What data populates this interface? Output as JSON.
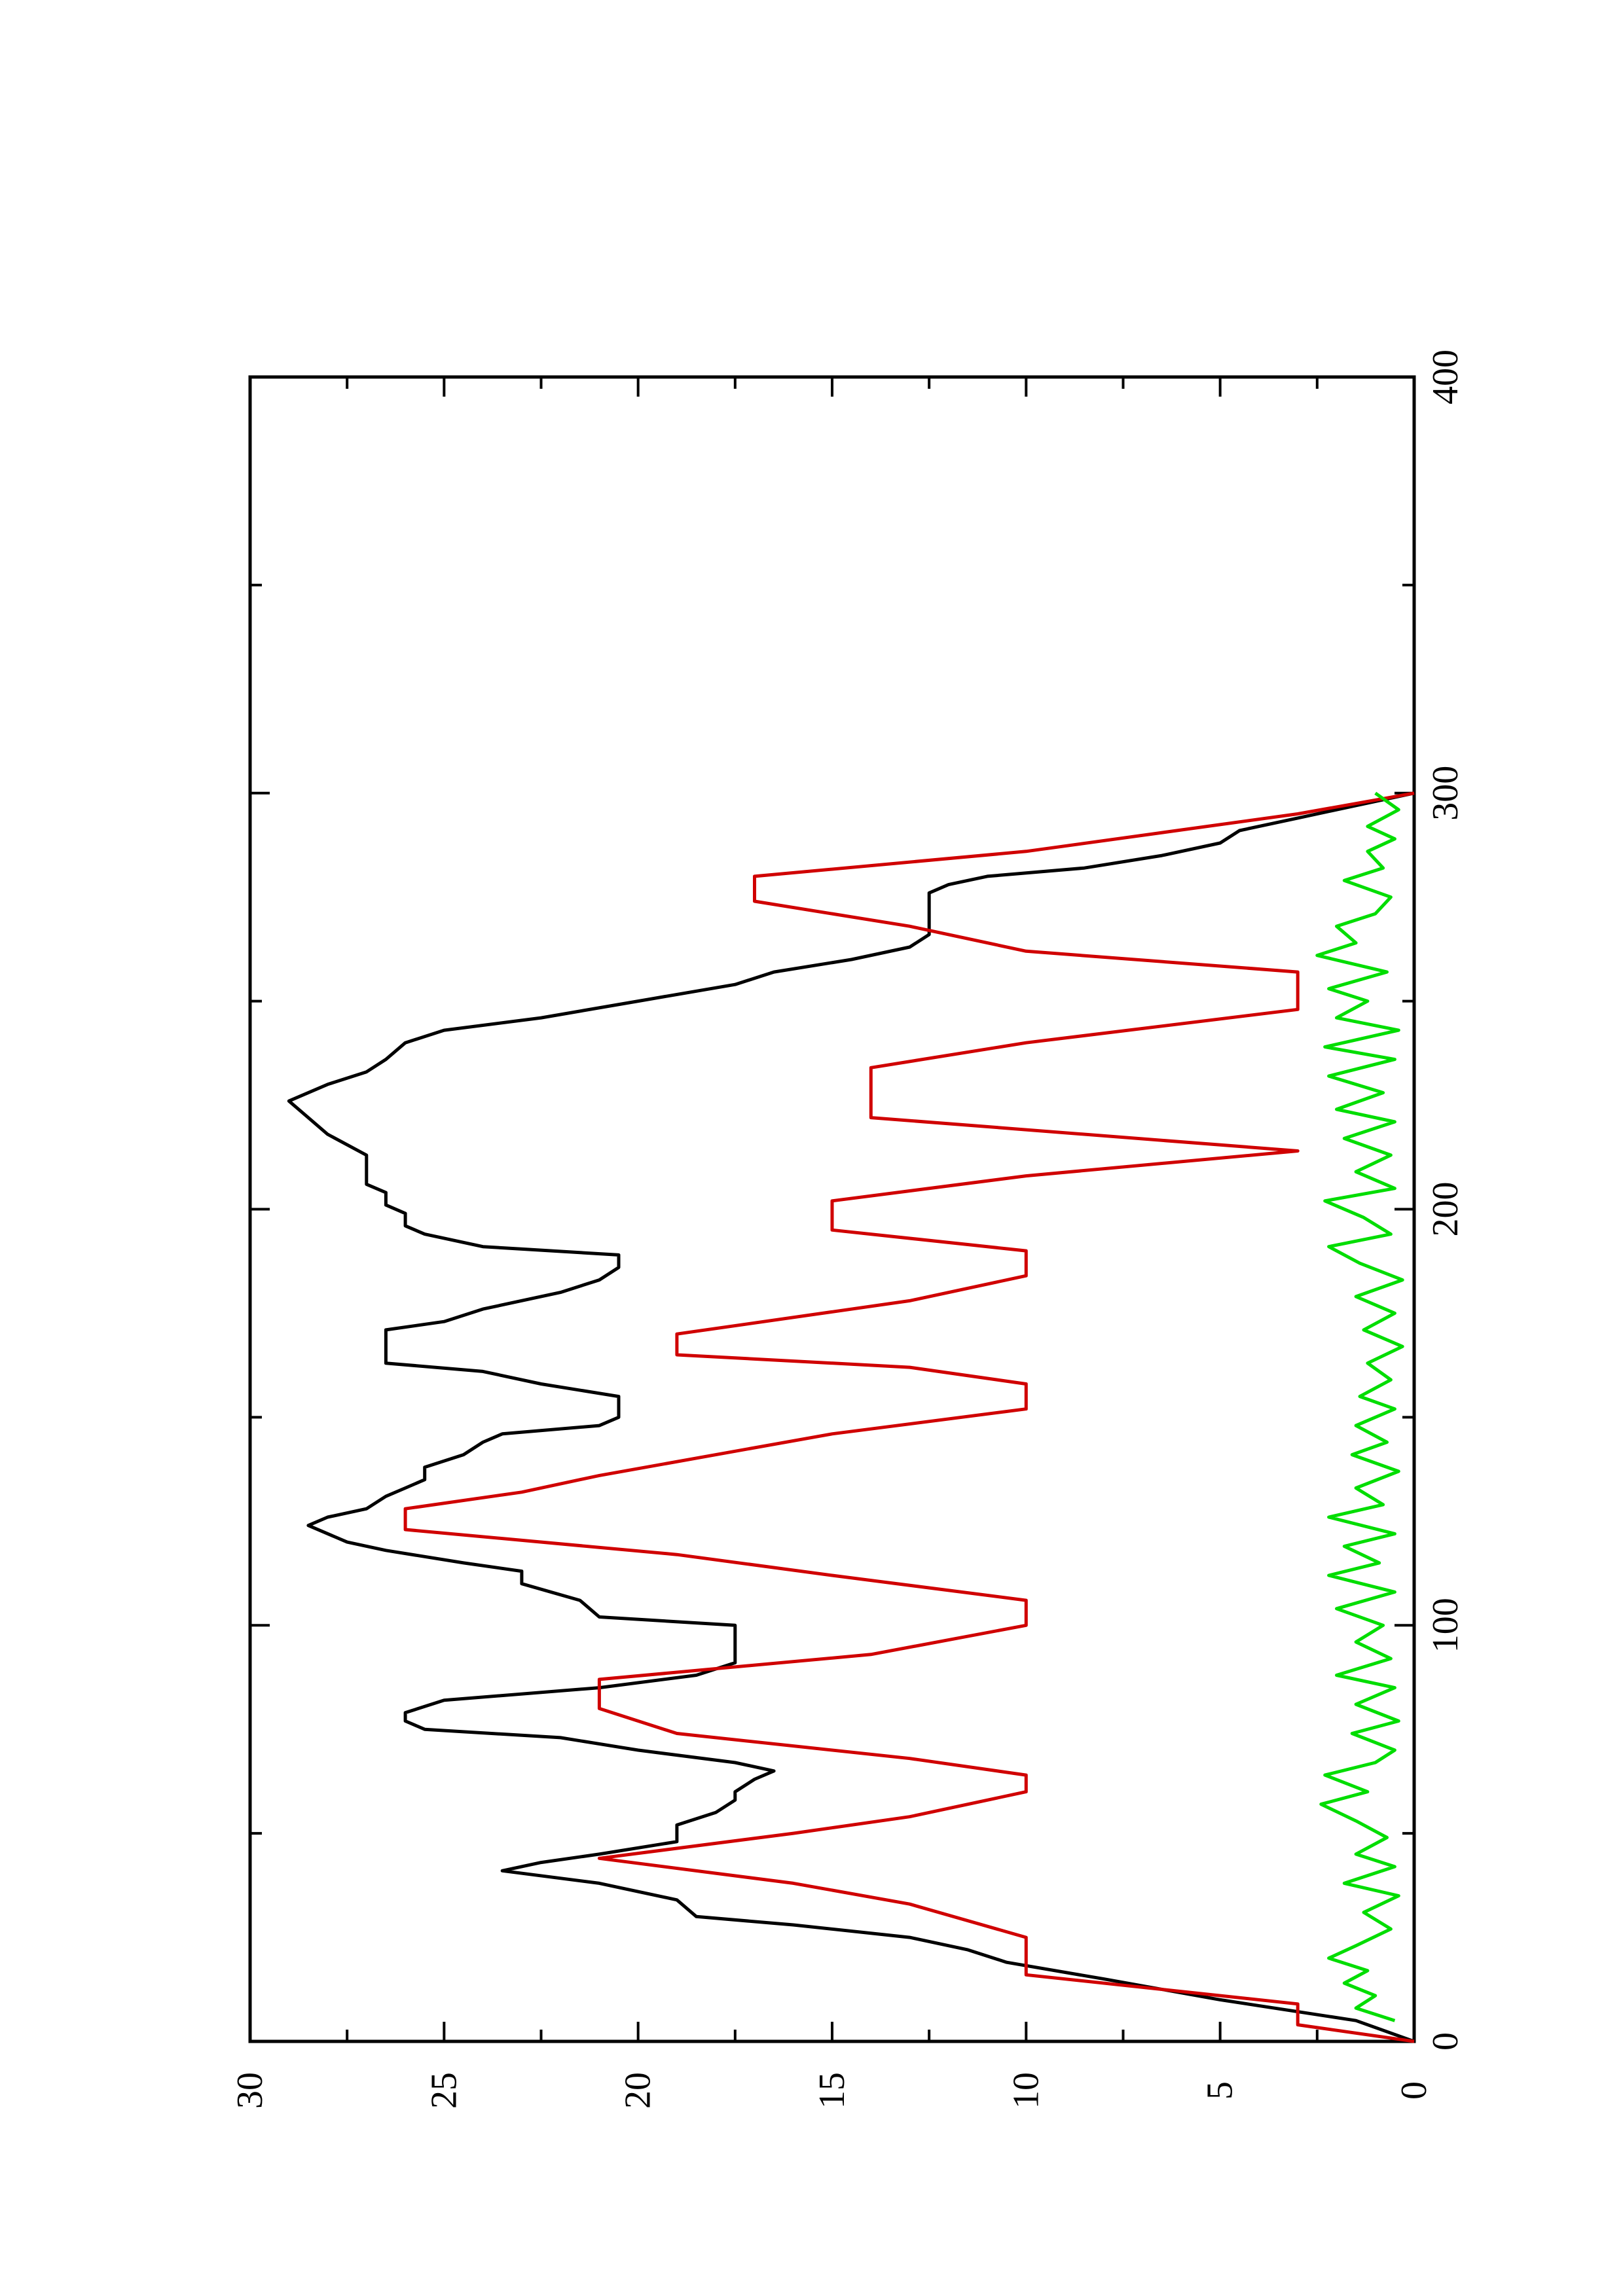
{
  "chart_data": {
    "type": "line",
    "orientation": "rotated-90-ccw",
    "title": "",
    "xlabel": "",
    "ylabel": "",
    "xlim": [
      0,
      400
    ],
    "ylim": [
      0,
      30
    ],
    "x_ticks": [
      0,
      100,
      200,
      300,
      400
    ],
    "x_tick_labels": [
      "0",
      "100",
      "200",
      "300",
      "400"
    ],
    "y_ticks": [
      0,
      5,
      10,
      15,
      20,
      25,
      30
    ],
    "y_tick_labels": [
      "0",
      "5",
      "10",
      "15",
      "20",
      "25",
      "30"
    ],
    "grid": false,
    "legend": "none",
    "series": [
      {
        "color": "#000000",
        "x": [
          0,
          5,
          10,
          15,
          19,
          22,
          25,
          28,
          30,
          34,
          38,
          41,
          43,
          45,
          48,
          52,
          55,
          58,
          60,
          63,
          65,
          67,
          70,
          73,
          75,
          77,
          79,
          82,
          85,
          88,
          91,
          93,
          96,
          100,
          102,
          106,
          110,
          113,
          115,
          118,
          120,
          124,
          126,
          128,
          131,
          133,
          135,
          138,
          141,
          144,
          146,
          148,
          150,
          151,
          152,
          155,
          158,
          161,
          163,
          165,
          168,
          171,
          173,
          176,
          180,
          183,
          186,
          189,
          191,
          194,
          196,
          199,
          201,
          204,
          206,
          210,
          213,
          218,
          222,
          226,
          230,
          233,
          236,
          240,
          243,
          246,
          250,
          254,
          257,
          260,
          263,
          266,
          268,
          270,
          272,
          274,
          276,
          278,
          280,
          282,
          285,
          288,
          291,
          294,
          297,
          300
        ],
        "y": [
          0,
          1.5,
          5,
          8,
          10.5,
          11.5,
          13,
          16,
          18.5,
          19,
          21,
          23.5,
          22.5,
          21,
          19,
          19,
          18,
          17.5,
          17.5,
          17,
          16.5,
          17.5,
          20,
          22,
          25.5,
          26,
          26,
          25,
          21,
          18.5,
          17.5,
          17.5,
          17.5,
          17.5,
          21,
          21.5,
          23,
          23,
          24.5,
          26.5,
          27.5,
          28.5,
          28,
          27,
          26.5,
          26,
          25.5,
          25.5,
          24.5,
          24,
          23.5,
          21,
          20.5,
          20.5,
          20.5,
          20.5,
          22.5,
          24,
          26.5,
          26.5,
          26.5,
          26.5,
          25,
          24,
          22,
          21,
          20.5,
          20.5,
          24,
          25.5,
          26,
          26,
          26.5,
          26.5,
          27,
          27,
          27,
          28,
          28.5,
          29,
          28,
          27,
          26.5,
          26,
          25,
          22.5,
          20,
          17.5,
          16.5,
          14.5,
          13,
          12.5,
          12.5,
          12.5,
          12.5,
          12.5,
          12.5,
          12,
          11,
          8.5,
          6.5,
          5,
          4.5,
          3,
          1.5,
          0
        ]
      },
      {
        "color": "#d00000",
        "x": [
          0,
          4,
          9,
          16,
          25,
          33,
          38,
          44,
          50,
          54,
          60,
          64,
          68,
          74,
          80,
          87,
          93,
          100,
          106,
          112,
          117,
          123,
          128,
          132,
          136,
          146,
          152,
          158,
          162,
          165,
          170,
          178,
          184,
          190,
          195,
          202,
          208,
          214,
          222,
          234,
          240,
          248,
          257,
          262,
          268,
          274,
          280,
          286,
          295,
          300
        ],
        "y": [
          0,
          3,
          3,
          10,
          10,
          13,
          16,
          21,
          16,
          13,
          10,
          10,
          13,
          19,
          21,
          21,
          14,
          10,
          10,
          15,
          19,
          26,
          26,
          23,
          21,
          15,
          10,
          10,
          13,
          19,
          19,
          13,
          10,
          10,
          15,
          15,
          10,
          3,
          14,
          14,
          10,
          3,
          3,
          10,
          13,
          17,
          17,
          10,
          3,
          0
        ]
      },
      {
        "color": "#00dd00",
        "x": [
          5,
          8,
          11,
          14,
          17,
          20,
          23,
          27,
          31,
          35,
          38,
          42,
          45,
          49,
          53,
          57,
          60,
          64,
          67,
          70,
          74,
          77,
          81,
          85,
          88,
          92,
          96,
          100,
          104,
          108,
          112,
          115,
          119,
          122,
          126,
          129,
          133,
          137,
          141,
          144,
          148,
          152,
          155,
          159,
          163,
          167,
          171,
          175,
          179,
          183,
          187,
          191,
          194,
          198,
          202,
          205,
          209,
          213,
          217,
          221,
          224,
          228,
          232,
          236,
          239,
          243,
          246,
          250,
          253,
          257,
          261,
          264,
          268,
          271,
          275,
          279,
          282,
          286,
          289,
          292,
          296,
          300
        ],
        "y": [
          0.5,
          1.5,
          1,
          1.8,
          1.2,
          2.2,
          1.5,
          0.6,
          1.3,
          0.4,
          1.8,
          0.5,
          1.5,
          0.7,
          1.5,
          2.4,
          1.2,
          2.3,
          1.0,
          0.5,
          1.6,
          0.4,
          1.5,
          0.5,
          2.0,
          0.6,
          1.5,
          0.8,
          2.0,
          0.5,
          2.2,
          0.9,
          1.8,
          0.5,
          2.2,
          0.8,
          1.5,
          0.4,
          1.6,
          0.7,
          1.5,
          0.5,
          1.4,
          0.6,
          1.2,
          0.3,
          1.3,
          0.5,
          1.5,
          0.3,
          1.4,
          2.2,
          0.6,
          1.3,
          2.3,
          0.5,
          1.5,
          0.6,
          1.8,
          0.5,
          2.0,
          0.8,
          2.2,
          0.5,
          2.3,
          0.4,
          2.0,
          1.2,
          2.2,
          0.7,
          2.5,
          1.5,
          2.0,
          1.0,
          0.6,
          1.8,
          0.8,
          1.2,
          0.5,
          1.2,
          0.4,
          1.0
        ]
      }
    ]
  }
}
